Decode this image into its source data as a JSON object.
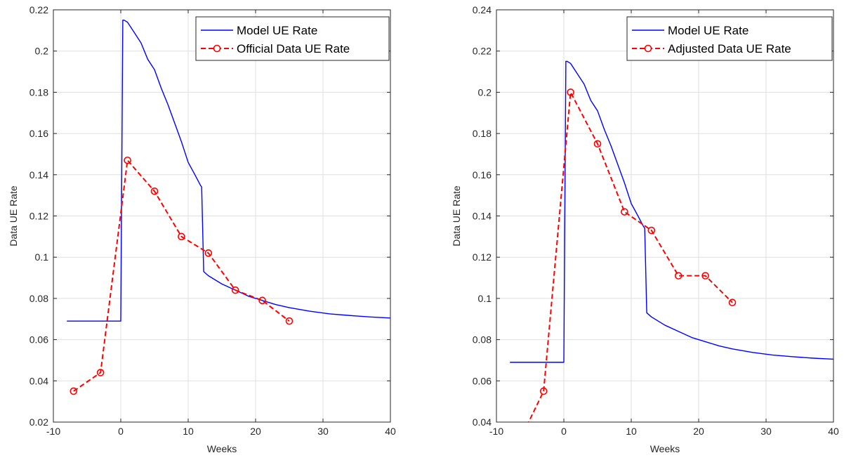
{
  "chart_data": [
    {
      "type": "line",
      "title": "",
      "xlabel": "Weeks",
      "ylabel": "Data UE Rate",
      "xlim": [
        -10,
        40
      ],
      "ylim": [
        0.02,
        0.22
      ],
      "xticks": [
        -10,
        0,
        10,
        20,
        30,
        40
      ],
      "yticks": [
        0.02,
        0.04,
        0.06,
        0.08,
        0.1,
        0.12,
        0.14,
        0.16,
        0.18,
        0.2,
        0.22
      ],
      "xtick_labels": [
        "-10",
        "0",
        "10",
        "20",
        "30",
        "40"
      ],
      "ytick_labels": [
        "0.02",
        "0.04",
        "0.06",
        "0.08",
        "0.1",
        "0.12",
        "0.14",
        "0.16",
        "0.18",
        "0.2",
        "0.22"
      ],
      "grid": true,
      "legend_position": "top-right",
      "series": [
        {
          "name": "Model UE Rate",
          "color": "#0000ff",
          "style": "solid",
          "x": [
            -8,
            0,
            0.3,
            0.5,
            1,
            2,
            3,
            4,
            5,
            6,
            7,
            8,
            9,
            10,
            11,
            11.8,
            12,
            12.3,
            13,
            15,
            17,
            19,
            21,
            23,
            25,
            28,
            31,
            34,
            37,
            40
          ],
          "y": [
            0.069,
            0.069,
            0.215,
            0.215,
            0.214,
            0.209,
            0.204,
            0.196,
            0.191,
            0.182,
            0.174,
            0.165,
            0.156,
            0.146,
            0.14,
            0.135,
            0.134,
            0.093,
            0.091,
            0.087,
            0.084,
            0.081,
            0.079,
            0.077,
            0.0755,
            0.0738,
            0.0725,
            0.0717,
            0.071,
            0.0705
          ]
        },
        {
          "name": "Official Data UE Rate",
          "color": "#ff0000",
          "style": "dashed",
          "marker": "circle",
          "x": [
            -7,
            -3,
            1,
            5,
            9,
            13,
            17,
            21,
            25
          ],
          "y": [
            0.035,
            0.044,
            0.147,
            0.132,
            0.11,
            0.102,
            0.084,
            0.079,
            0.069
          ]
        }
      ]
    },
    {
      "type": "line",
      "title": "",
      "xlabel": "Weeks",
      "ylabel": "Data UE Rate",
      "xlim": [
        -10,
        40
      ],
      "ylim": [
        0.04,
        0.24
      ],
      "xticks": [
        -10,
        0,
        10,
        20,
        30,
        40
      ],
      "yticks": [
        0.04,
        0.06,
        0.08,
        0.1,
        0.12,
        0.14,
        0.16,
        0.18,
        0.2,
        0.22,
        0.24
      ],
      "xtick_labels": [
        "-10",
        "0",
        "10",
        "20",
        "30",
        "40"
      ],
      "ytick_labels": [
        "0.04",
        "0.06",
        "0.08",
        "0.1",
        "0.12",
        "0.14",
        "0.16",
        "0.18",
        "0.2",
        "0.22",
        "0.24"
      ],
      "grid": true,
      "legend_position": "top-right",
      "series": [
        {
          "name": "Model UE Rate",
          "color": "#0000ff",
          "style": "solid",
          "x": [
            -8,
            0,
            0.3,
            0.5,
            1,
            2,
            3,
            4,
            5,
            6,
            7,
            8,
            9,
            10,
            11,
            11.8,
            12,
            12.3,
            13,
            15,
            17,
            19,
            21,
            23,
            25,
            28,
            31,
            34,
            37,
            40
          ],
          "y": [
            0.069,
            0.069,
            0.215,
            0.215,
            0.214,
            0.209,
            0.204,
            0.196,
            0.191,
            0.182,
            0.174,
            0.165,
            0.156,
            0.146,
            0.14,
            0.135,
            0.134,
            0.093,
            0.091,
            0.087,
            0.084,
            0.081,
            0.079,
            0.077,
            0.0755,
            0.0738,
            0.0725,
            0.0717,
            0.071,
            0.0705
          ]
        },
        {
          "name": "Adjusted Data UE Rate",
          "color": "#ff0000",
          "style": "dashed",
          "marker": "circle",
          "x": [
            -7,
            -3,
            1,
            5,
            9,
            13,
            17,
            21,
            25
          ],
          "y": [
            0.028,
            0.055,
            0.2,
            0.175,
            0.142,
            0.133,
            0.111,
            0.111,
            0.098
          ]
        }
      ]
    }
  ]
}
